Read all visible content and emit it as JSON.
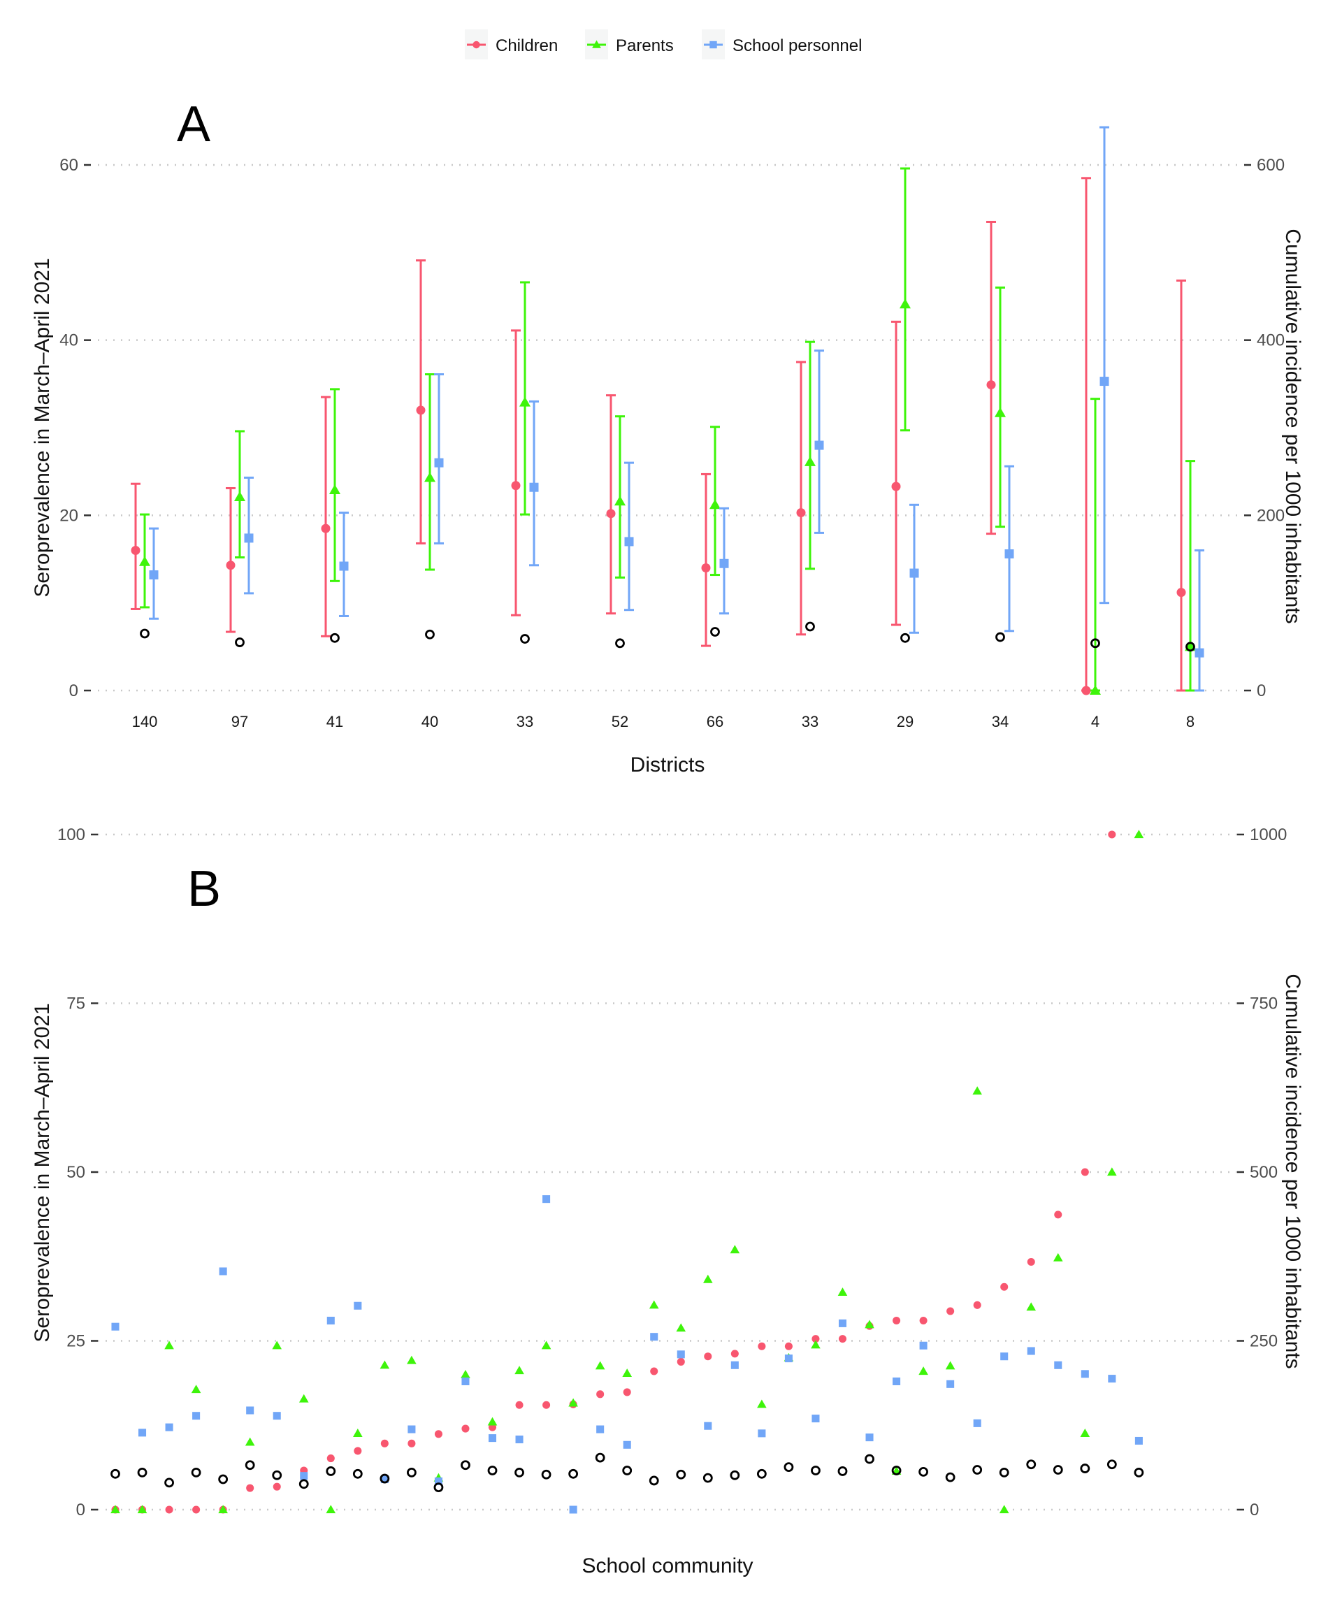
{
  "legend": {
    "items": [
      {
        "name": "Children",
        "color": "#F8566F",
        "shape": "circle"
      },
      {
        "name": "Parents",
        "color": "#3EF40A",
        "shape": "triangle"
      },
      {
        "name": "School personnel",
        "color": "#71A6F7",
        "shape": "square"
      }
    ]
  },
  "chart_data": [
    {
      "panel": "A",
      "type": "scatter",
      "title": "",
      "xlabel": "Districts",
      "ylabel": "Seroprevalence in March–April 2021",
      "ylabel_right": "Cumulative incidence per 1000 inhabitants",
      "ylim": [
        0,
        60
      ],
      "ylim_right": [
        0,
        600
      ],
      "yticks": [
        0,
        20,
        40,
        60
      ],
      "yticks_right": [
        0,
        200,
        400,
        600
      ],
      "grid": true,
      "categories": [
        "140",
        "97",
        "41",
        "40",
        "33",
        "52",
        "66",
        "33",
        "29",
        "34",
        "4",
        "8"
      ],
      "series": [
        {
          "name": "Children",
          "values": [
            16.0,
            14.3,
            18.5,
            32.0,
            23.4,
            20.2,
            14.0,
            20.3,
            23.3,
            34.9,
            0.0,
            11.2
          ],
          "lower": [
            9.3,
            6.7,
            6.2,
            16.8,
            8.6,
            8.8,
            5.1,
            6.4,
            7.5,
            17.9,
            0.0,
            0.0
          ],
          "upper": [
            23.6,
            23.1,
            33.5,
            49.1,
            41.1,
            33.7,
            24.7,
            37.5,
            42.1,
            53.5,
            58.5,
            46.8
          ]
        },
        {
          "name": "Parents",
          "values": [
            14.7,
            22.1,
            22.9,
            24.3,
            32.9,
            21.6,
            21.2,
            26.1,
            44.1,
            31.7,
            0.0,
            5.0
          ],
          "lower": [
            9.5,
            15.2,
            12.5,
            13.8,
            20.1,
            12.9,
            13.2,
            13.9,
            29.7,
            18.7,
            0.0,
            0.0
          ],
          "upper": [
            20.1,
            29.6,
            34.4,
            36.1,
            46.6,
            31.3,
            30.1,
            39.8,
            59.6,
            46.0,
            33.3,
            26.2
          ]
        },
        {
          "name": "School personnel",
          "values": [
            13.2,
            17.4,
            14.2,
            26.0,
            23.2,
            17.0,
            14.5,
            28.0,
            13.4,
            15.6,
            35.3,
            4.3
          ],
          "lower": [
            8.2,
            11.1,
            8.5,
            16.8,
            14.3,
            9.2,
            8.8,
            18.0,
            6.6,
            6.8,
            10.0,
            0.0
          ],
          "upper": [
            18.5,
            24.3,
            20.3,
            36.1,
            33.0,
            26.0,
            20.8,
            38.8,
            21.2,
            25.6,
            64.3,
            16.0
          ]
        },
        {
          "name": "Cumulative incidence",
          "axis": "right",
          "values": [
            65,
            55,
            60,
            64,
            59,
            54,
            67,
            73,
            60,
            61,
            54,
            50
          ]
        }
      ]
    },
    {
      "panel": "B",
      "type": "scatter",
      "title": "",
      "xlabel": "School community",
      "ylabel": "Seroprevalence in March–April 2021",
      "ylabel_right": "Cumulative incidence per 1000 inhabitants",
      "ylim": [
        0,
        100
      ],
      "ylim_right": [
        0,
        1000
      ],
      "yticks": [
        0,
        25,
        50,
        75,
        100
      ],
      "yticks_right": [
        0,
        250,
        500,
        750,
        1000
      ],
      "grid": true,
      "n_communities": 42,
      "series": [
        {
          "name": "Children",
          "values": [
            0,
            0,
            0,
            0,
            0,
            3.2,
            3.4,
            5.8,
            7.6,
            8.7,
            9.8,
            9.8,
            11.2,
            12.0,
            12.2,
            15.5,
            15.5,
            15.6,
            17.1,
            17.4,
            20.5,
            21.9,
            22.7,
            23.1,
            24.2,
            24.2,
            25.3,
            25.3,
            27.2,
            28.0,
            28.0,
            29.4,
            30.3,
            33.0,
            36.7,
            43.7,
            50.0,
            100.0,
            null,
            null,
            null,
            null
          ]
        },
        {
          "name": "Parents",
          "values": [
            0,
            0,
            24.3,
            17.8,
            0,
            10.0,
            24.3,
            16.4,
            0,
            11.3,
            21.4,
            22.1,
            4.7,
            20.0,
            13.0,
            20.6,
            24.3,
            15.8,
            21.3,
            20.2,
            30.3,
            26.9,
            34.1,
            38.5,
            15.6,
            22.5,
            24.4,
            32.2,
            27.4,
            5.7,
            20.5,
            21.3,
            62.0,
            0,
            30.0,
            37.3,
            11.3,
            50.0,
            100.0,
            null,
            null,
            null
          ]
        },
        {
          "name": "School personnel",
          "values": [
            27.1,
            11.4,
            12.2,
            13.9,
            35.3,
            14.7,
            13.9,
            5.0,
            28.0,
            30.2,
            4.5,
            11.9,
            4.2,
            19.0,
            10.6,
            10.4,
            46.0,
            0,
            11.9,
            9.6,
            25.6,
            23.0,
            12.4,
            21.4,
            11.3,
            22.4,
            13.5,
            27.6,
            10.7,
            19.0,
            24.3,
            18.6,
            12.8,
            22.7,
            23.5,
            21.4,
            20.1,
            19.4,
            10.2,
            null,
            null,
            null
          ]
        },
        {
          "name": "Cumulative incidence",
          "axis": "right",
          "values": [
            53,
            55,
            40,
            55,
            45,
            66,
            51,
            38,
            57,
            53,
            46,
            55,
            33,
            66,
            58,
            55,
            52,
            53,
            77,
            58,
            43,
            52,
            47,
            51,
            53,
            63,
            58,
            57,
            75,
            58,
            56,
            48,
            59,
            55,
            67,
            59,
            61,
            67,
            55,
            null,
            null,
            null
          ]
        }
      ]
    }
  ],
  "panels": {
    "A": {
      "label": "A",
      "xlabel": "Districts",
      "ylabel": "Seroprevalence in March–April 2021",
      "ylabel_right": "Cumulative incidence per 1000 inhabitants",
      "yticks": [
        "0",
        "20",
        "40",
        "60"
      ],
      "yticks_right": [
        "0",
        "200",
        "400",
        "600"
      ],
      "xticks": [
        "140",
        "97",
        "41",
        "40",
        "33",
        "52",
        "66",
        "33",
        "29",
        "34",
        "4",
        "8"
      ]
    },
    "B": {
      "label": "B",
      "xlabel": "School community",
      "ylabel": "Seroprevalence in March–April 2021",
      "ylabel_right": "Cumulative incidence per 1000 inhabitants",
      "yticks": [
        "0",
        "25",
        "50",
        "75",
        "100"
      ],
      "yticks_right": [
        "0",
        "250",
        "500",
        "750",
        "1000"
      ]
    }
  }
}
